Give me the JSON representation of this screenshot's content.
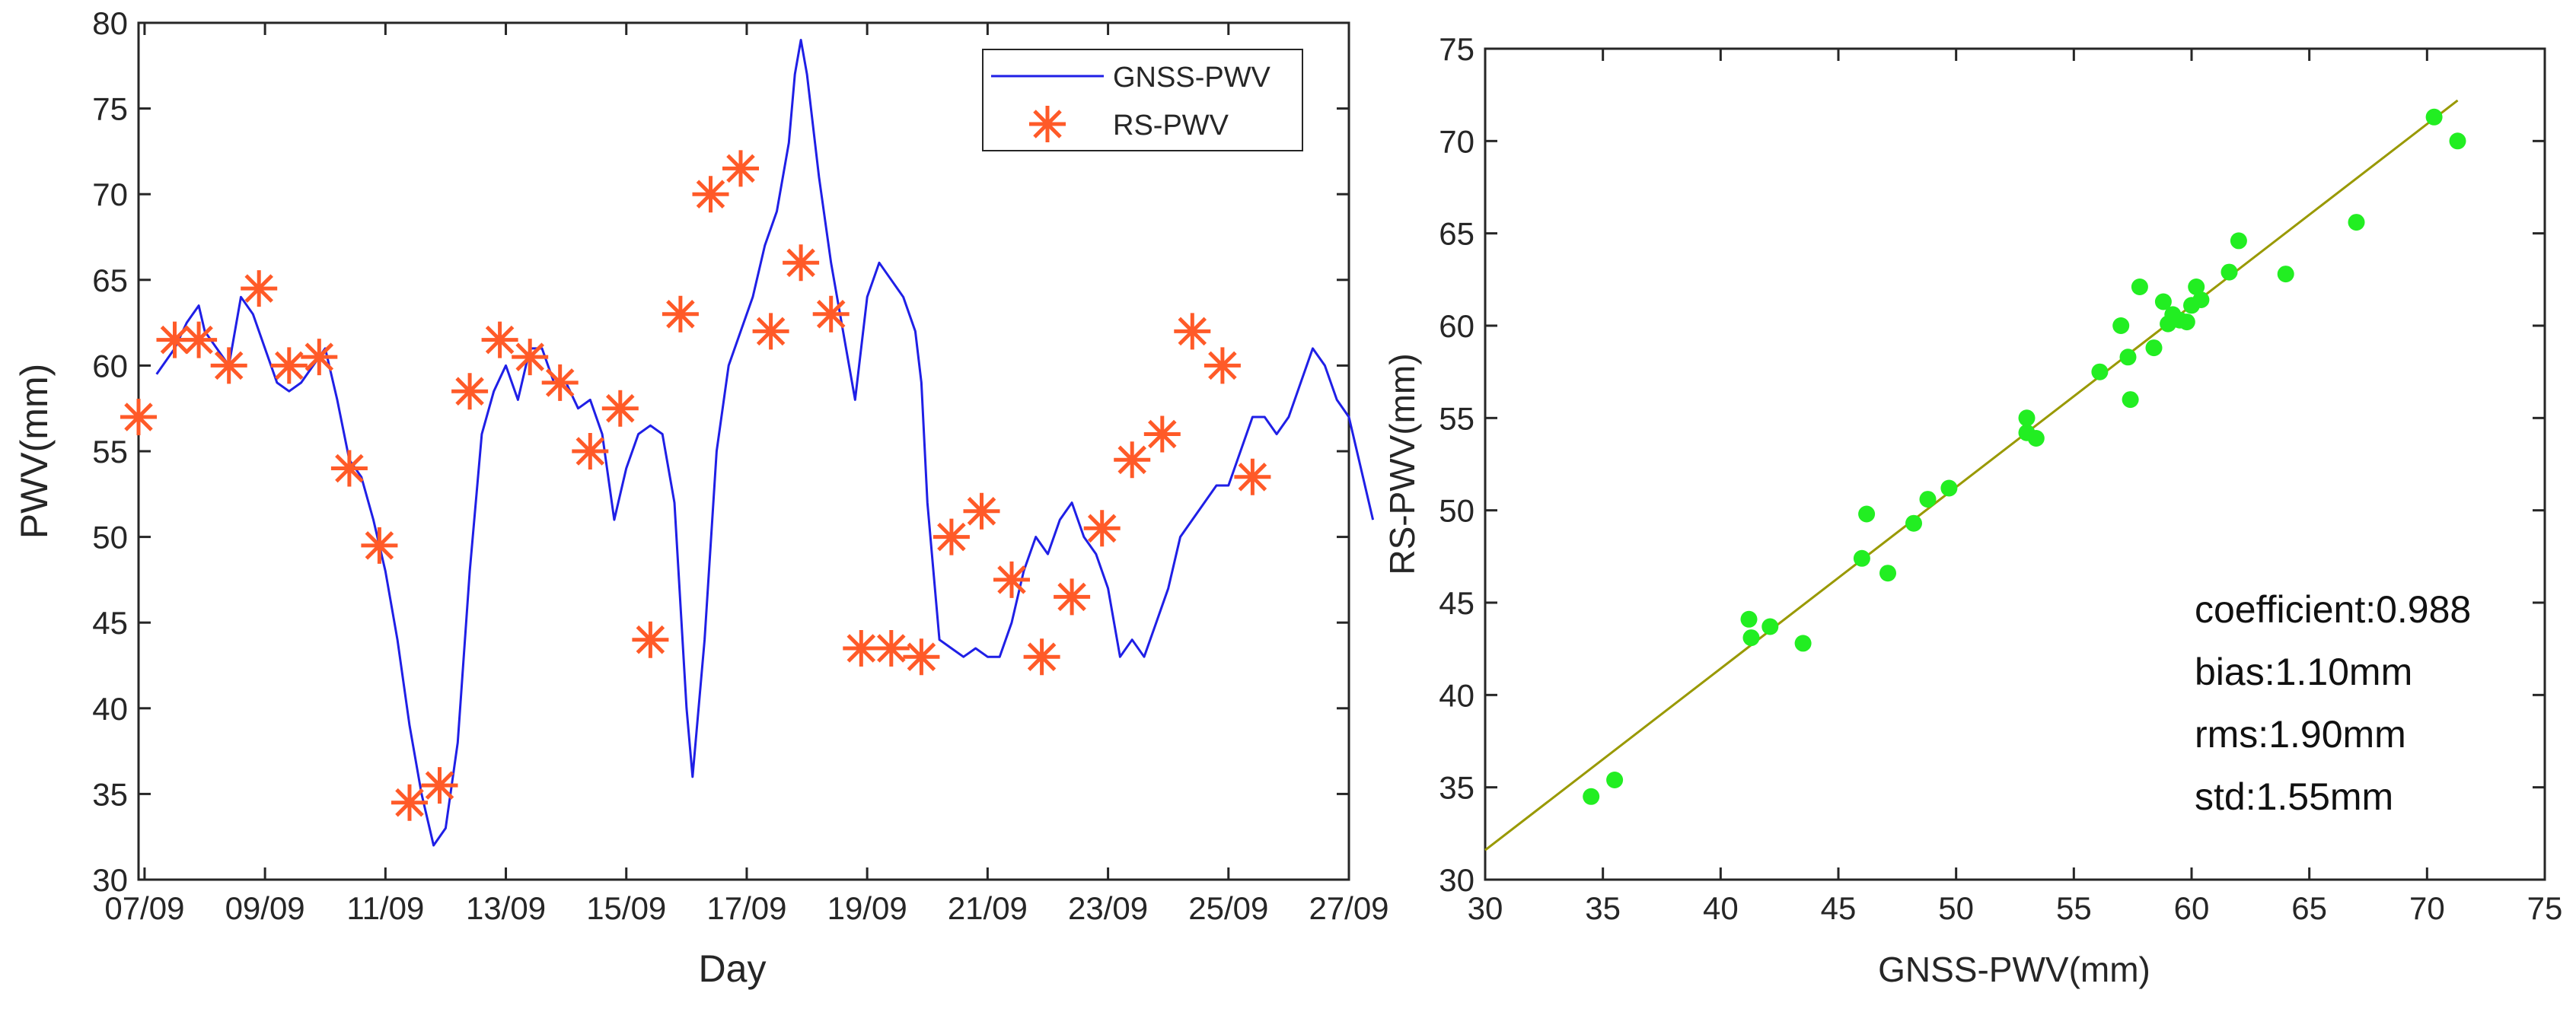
{
  "chart_data": [
    {
      "type": "line",
      "title": "",
      "xlabel": "Day",
      "ylabel": "PWV(mm)",
      "xlim": [
        -0.1,
        20.0
      ],
      "ylim": [
        30,
        80
      ],
      "xticks": [
        0,
        2,
        4,
        6,
        8,
        10,
        12,
        14,
        16,
        18,
        20
      ],
      "xtick_labels": [
        "07/09",
        "09/09",
        "11/09",
        "13/09",
        "15/09",
        "17/09",
        "19/09",
        "21/09",
        "23/09",
        "25/09",
        "27/09"
      ],
      "yticks": [
        30,
        35,
        40,
        45,
        50,
        55,
        60,
        65,
        70,
        75,
        80
      ],
      "ytick_labels": [
        "30",
        "35",
        "40",
        "45",
        "50",
        "55",
        "60",
        "65",
        "70",
        "75",
        "80"
      ],
      "legend": {
        "position": "top-right",
        "entries": [
          "GNSS-PWV",
          "RS-PWV"
        ]
      },
      "series": [
        {
          "name": "GNSS-PWV",
          "color": "#1f1fe6",
          "style": "line",
          "points": [
            [
              0.2,
              59.5
            ],
            [
              0.5,
              61
            ],
            [
              0.7,
              62.5
            ],
            [
              0.9,
              63.5
            ],
            [
              1.0,
              62
            ],
            [
              1.2,
              61
            ],
            [
              1.4,
              60
            ],
            [
              1.6,
              64
            ],
            [
              1.8,
              63
            ],
            [
              2.0,
              61
            ],
            [
              2.2,
              59
            ],
            [
              2.4,
              58.5
            ],
            [
              2.6,
              59
            ],
            [
              2.8,
              60
            ],
            [
              3.0,
              61
            ],
            [
              3.2,
              58
            ],
            [
              3.4,
              54.5
            ],
            [
              3.6,
              53.5
            ],
            [
              3.8,
              51
            ],
            [
              4.0,
              48
            ],
            [
              4.2,
              44
            ],
            [
              4.4,
              39
            ],
            [
              4.6,
              35
            ],
            [
              4.8,
              32
            ],
            [
              5.0,
              33
            ],
            [
              5.2,
              38
            ],
            [
              5.4,
              48
            ],
            [
              5.6,
              56
            ],
            [
              5.8,
              58.5
            ],
            [
              6.0,
              60
            ],
            [
              6.2,
              58
            ],
            [
              6.4,
              61
            ],
            [
              6.6,
              61
            ],
            [
              6.8,
              59
            ],
            [
              7.0,
              59
            ],
            [
              7.2,
              57.5
            ],
            [
              7.4,
              58
            ],
            [
              7.6,
              56
            ],
            [
              7.8,
              51
            ],
            [
              8.0,
              54
            ],
            [
              8.2,
              56
            ],
            [
              8.4,
              56.5
            ],
            [
              8.6,
              56
            ],
            [
              8.8,
              52
            ],
            [
              9.0,
              40
            ],
            [
              9.1,
              36
            ],
            [
              9.3,
              44
            ],
            [
              9.5,
              55
            ],
            [
              9.7,
              60
            ],
            [
              9.9,
              62
            ],
            [
              10.1,
              64
            ],
            [
              10.3,
              67
            ],
            [
              10.5,
              69
            ],
            [
              10.7,
              73
            ],
            [
              10.8,
              77
            ],
            [
              10.9,
              79
            ],
            [
              11.0,
              77
            ],
            [
              11.2,
              71
            ],
            [
              11.4,
              66
            ],
            [
              11.6,
              62
            ],
            [
              11.8,
              58
            ],
            [
              12.0,
              64
            ],
            [
              12.2,
              66
            ],
            [
              12.4,
              65
            ],
            [
              12.6,
              64
            ],
            [
              12.8,
              62
            ],
            [
              12.9,
              59
            ],
            [
              13.0,
              52
            ],
            [
              13.2,
              44
            ],
            [
              13.4,
              43.5
            ],
            [
              13.6,
              43
            ],
            [
              13.8,
              43.5
            ],
            [
              14.0,
              43
            ],
            [
              14.2,
              43
            ],
            [
              14.4,
              45
            ],
            [
              14.6,
              48
            ],
            [
              14.8,
              50
            ],
            [
              15.0,
              49
            ],
            [
              15.2,
              51
            ],
            [
              15.4,
              52
            ],
            [
              15.6,
              50
            ],
            [
              15.8,
              49
            ],
            [
              16.0,
              47
            ],
            [
              16.2,
              43
            ],
            [
              16.4,
              44
            ],
            [
              16.6,
              43
            ],
            [
              16.8,
              45
            ],
            [
              17.0,
              47
            ],
            [
              17.2,
              50
            ],
            [
              17.4,
              51
            ],
            [
              17.6,
              52
            ],
            [
              17.8,
              53
            ],
            [
              18.0,
              53
            ],
            [
              18.2,
              55
            ],
            [
              18.4,
              57
            ],
            [
              18.6,
              57
            ],
            [
              18.8,
              56
            ],
            [
              19.0,
              57
            ],
            [
              19.2,
              59
            ],
            [
              19.4,
              61
            ],
            [
              19.6,
              60
            ],
            [
              19.8,
              58
            ],
            [
              20.0,
              57
            ],
            [
              20.2,
              54
            ],
            [
              20.4,
              51
            ]
          ]
        },
        {
          "name": "RS-PWV",
          "color": "#ff5a28",
          "style": "marker",
          "points": [
            [
              -0.1,
              57
            ],
            [
              0.5,
              61.5
            ],
            [
              0.9,
              61.5
            ],
            [
              1.4,
              60
            ],
            [
              1.9,
              64.5
            ],
            [
              2.4,
              60
            ],
            [
              2.9,
              60.5
            ],
            [
              3.4,
              54
            ],
            [
              3.9,
              49.5
            ],
            [
              4.4,
              34.5
            ],
            [
              4.9,
              35.5
            ],
            [
              5.4,
              58.5
            ],
            [
              5.9,
              61.5
            ],
            [
              6.4,
              60.5
            ],
            [
              6.9,
              59
            ],
            [
              7.4,
              55
            ],
            [
              7.9,
              57.5
            ],
            [
              8.4,
              44
            ],
            [
              8.9,
              63
            ],
            [
              9.4,
              70
            ],
            [
              9.9,
              71.5
            ],
            [
              10.4,
              62
            ],
            [
              10.9,
              66
            ],
            [
              11.4,
              63
            ],
            [
              11.9,
              43.5
            ],
            [
              12.4,
              43.5
            ],
            [
              12.9,
              43
            ],
            [
              13.4,
              50
            ],
            [
              13.9,
              51.5
            ],
            [
              14.4,
              47.5
            ],
            [
              14.9,
              43
            ],
            [
              15.4,
              46.5
            ],
            [
              15.9,
              50.5
            ],
            [
              16.4,
              54.5
            ],
            [
              16.9,
              56
            ],
            [
              17.4,
              62
            ],
            [
              17.9,
              60
            ],
            [
              18.4,
              53.5
            ]
          ]
        }
      ]
    },
    {
      "type": "scatter",
      "title": "",
      "xlabel": "GNSS-PWV(mm)",
      "ylabel": "RS-PWV(mm)",
      "xlim": [
        30,
        75
      ],
      "ylim": [
        30,
        75
      ],
      "xticks": [
        30,
        35,
        40,
        45,
        50,
        55,
        60,
        65,
        70,
        75
      ],
      "xtick_labels": [
        "30",
        "35",
        "40",
        "45",
        "50",
        "55",
        "60",
        "65",
        "70",
        "75"
      ],
      "yticks": [
        30,
        35,
        40,
        45,
        50,
        55,
        60,
        65,
        70,
        75
      ],
      "ytick_labels": [
        "30",
        "35",
        "40",
        "45",
        "50",
        "55",
        "60",
        "65",
        "70",
        "75"
      ],
      "points_color": "#22ee22",
      "points": [
        [
          34.5,
          34.5
        ],
        [
          35.5,
          35.4
        ],
        [
          41.2,
          44.1
        ],
        [
          41.3,
          43.1
        ],
        [
          42.1,
          43.7
        ],
        [
          43.5,
          42.8
        ],
        [
          46,
          47.4
        ],
        [
          46.2,
          49.8
        ],
        [
          47.1,
          46.6
        ],
        [
          48.2,
          49.3
        ],
        [
          48.8,
          50.6
        ],
        [
          49.7,
          51.2
        ],
        [
          53,
          55
        ],
        [
          53,
          54.2
        ],
        [
          53.4,
          53.9
        ],
        [
          56.1,
          57.5
        ],
        [
          57,
          60
        ],
        [
          57.3,
          58.3
        ],
        [
          57.4,
          56
        ],
        [
          57.8,
          62.1
        ],
        [
          58.4,
          58.8
        ],
        [
          58.8,
          61.3
        ],
        [
          59,
          60.1
        ],
        [
          59.2,
          60.6
        ],
        [
          59.5,
          60.3
        ],
        [
          59.8,
          60.2
        ],
        [
          60,
          61.1
        ],
        [
          60.2,
          62.1
        ],
        [
          60.4,
          61.4
        ],
        [
          61.6,
          62.9
        ],
        [
          62,
          64.6
        ],
        [
          64,
          62.8
        ],
        [
          67,
          65.6
        ],
        [
          70.3,
          71.3
        ],
        [
          71.3,
          70
        ]
      ],
      "fit_line": {
        "color": "#999900",
        "x": [
          30,
          71.3
        ],
        "y": [
          31.6,
          72.2
        ]
      },
      "annotations": [
        "coefficient:0.988",
        "bias:1.10mm",
        "rms:1.90mm",
        "std:1.55mm"
      ]
    }
  ]
}
